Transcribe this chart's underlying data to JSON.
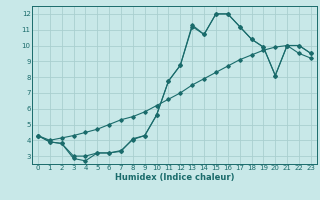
{
  "xlabel": "Humidex (Indice chaleur)",
  "xlim": [
    -0.5,
    23.5
  ],
  "ylim": [
    2.5,
    12.5
  ],
  "xticks": [
    0,
    1,
    2,
    3,
    4,
    5,
    6,
    7,
    8,
    9,
    10,
    11,
    12,
    13,
    14,
    15,
    16,
    17,
    18,
    19,
    20,
    21,
    22,
    23
  ],
  "yticks": [
    3,
    4,
    5,
    6,
    7,
    8,
    9,
    10,
    11,
    12
  ],
  "background_color": "#c8e8e8",
  "grid_color": "#aacfcf",
  "line_color": "#1a6b6b",
  "line1_x": [
    0,
    1,
    2,
    3,
    4,
    5,
    6,
    7,
    8,
    9,
    10,
    11,
    12,
    13,
    14,
    15,
    16,
    17,
    18,
    19,
    20,
    21,
    22,
    23
  ],
  "line1_y": [
    4.3,
    3.9,
    3.8,
    2.85,
    2.7,
    3.2,
    3.2,
    3.3,
    4.1,
    4.3,
    5.6,
    7.75,
    8.75,
    11.3,
    10.7,
    12.0,
    12.0,
    11.2,
    10.4,
    9.9,
    8.1,
    10.0,
    10.0,
    9.5
  ],
  "line2_x": [
    0,
    1,
    2,
    3,
    4,
    5,
    6,
    7,
    8,
    9,
    10,
    11,
    12,
    13,
    14,
    15,
    16,
    17,
    18,
    19,
    20,
    21,
    22,
    23
  ],
  "line2_y": [
    4.3,
    4.0,
    4.15,
    4.3,
    4.5,
    4.7,
    5.0,
    5.3,
    5.5,
    5.8,
    6.2,
    6.6,
    7.0,
    7.5,
    7.9,
    8.3,
    8.7,
    9.1,
    9.4,
    9.7,
    9.9,
    10.0,
    9.5,
    9.2
  ],
  "line3_x": [
    0,
    1,
    2,
    3,
    4,
    5,
    6,
    7,
    8,
    9,
    10,
    11,
    12,
    13,
    14,
    15,
    16,
    17,
    18,
    19,
    20,
    21,
    22,
    23
  ],
  "line3_y": [
    4.3,
    3.9,
    3.8,
    3.0,
    3.0,
    3.2,
    3.2,
    3.35,
    4.05,
    4.3,
    5.6,
    7.75,
    8.75,
    11.2,
    10.7,
    12.0,
    12.0,
    11.2,
    10.4,
    9.9,
    8.1,
    10.0,
    10.0,
    9.5
  ]
}
